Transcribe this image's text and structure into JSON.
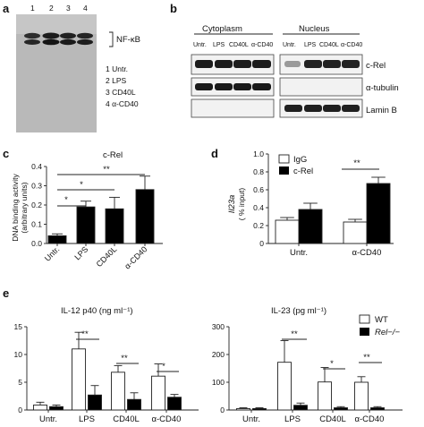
{
  "panels": {
    "a": {
      "label": "a",
      "lanes": [
        "1",
        "2",
        "3",
        "4"
      ],
      "band_label": "NF-κB",
      "legend": [
        "1 Untr.",
        "2 LPS",
        "3 CD40L",
        "4 α-CD40"
      ]
    },
    "b": {
      "label": "b",
      "compartments": [
        "Cytoplasm",
        "Nucleus"
      ],
      "lanes": [
        "Untr.",
        "LPS",
        "CD40L",
        "α-CD40"
      ],
      "rows": [
        "c-Rel",
        "α-tubulin",
        "Lamin B"
      ]
    },
    "c": {
      "label": "c",
      "title": "c-Rel",
      "ylabel_lines": [
        "DNA binding activity",
        "(arbitrary units)"
      ],
      "sig": [
        "*",
        "*",
        "**"
      ]
    },
    "d": {
      "label": "d",
      "ylabel_gene": "Il23a",
      "ylabel_unit": "( % input)",
      "legend": [
        "IgG",
        "c-Rel"
      ],
      "sig": [
        "**"
      ]
    },
    "e": {
      "label": "e",
      "left_title": "IL-12 p40 (ng ml⁻¹)",
      "right_title": "IL-23 (pg ml⁻¹)",
      "legend": [
        "WT",
        "Rel−/−"
      ],
      "left_sig": [
        "**",
        "**",
        "*"
      ],
      "right_sig": [
        "**",
        "*",
        "**"
      ]
    }
  },
  "chart_data": [
    {
      "id": "c",
      "type": "bar",
      "title": "c-Rel",
      "ylabel": "DNA binding activity (arbitrary units)",
      "categories": [
        "Untr.",
        "LPS",
        "CD40L",
        "α-CD40"
      ],
      "values": [
        0.04,
        0.19,
        0.18,
        0.28
      ],
      "errors": [
        0.01,
        0.03,
        0.06,
        0.07
      ],
      "ylim": [
        0,
        0.4
      ],
      "yticks": [
        "0.0",
        "0.1",
        "0.2",
        "0.3",
        "0.4"
      ],
      "color": "#000000"
    },
    {
      "id": "d",
      "type": "bar",
      "ylabel": "Il23a ( % input)",
      "categories": [
        "Untr.",
        "α-CD40"
      ],
      "series": [
        {
          "name": "IgG",
          "values": [
            0.26,
            0.24
          ],
          "errors": [
            0.03,
            0.03
          ],
          "color": "#ffffff"
        },
        {
          "name": "c-Rel",
          "values": [
            0.38,
            0.67
          ],
          "errors": [
            0.07,
            0.07
          ],
          "color": "#000000"
        }
      ],
      "ylim": [
        0,
        1.0
      ],
      "yticks": [
        "0",
        "0.2",
        "0.4",
        "0.6",
        "0.8",
        "1.0"
      ]
    },
    {
      "id": "e1",
      "type": "bar",
      "title": "IL-12 p40 (ng ml⁻¹)",
      "categories": [
        "Untr.",
        "LPS",
        "CD40L",
        "α-CD40"
      ],
      "series": [
        {
          "name": "WT",
          "values": [
            0.9,
            11.0,
            6.8,
            6.1
          ],
          "errors": [
            0.5,
            3.0,
            1.2,
            2.2
          ],
          "color": "#ffffff"
        },
        {
          "name": "Rel−/−",
          "values": [
            0.6,
            2.7,
            1.9,
            2.3
          ],
          "errors": [
            0.3,
            1.7,
            1.2,
            0.5
          ],
          "color": "#000000"
        }
      ],
      "ylim": [
        0,
        15
      ],
      "yticks": [
        "0",
        "5",
        "10",
        "15"
      ]
    },
    {
      "id": "e2",
      "type": "bar",
      "title": "IL-23 (pg ml⁻¹)",
      "categories": [
        "Untr.",
        "LPS",
        "CD40L",
        "α-CD40"
      ],
      "series": [
        {
          "name": "WT",
          "values": [
            5,
            172,
            101,
            100
          ],
          "errors": [
            3,
            78,
            52,
            20
          ],
          "color": "#ffffff"
        },
        {
          "name": "Rel−/−",
          "values": [
            5,
            17,
            8,
            8
          ],
          "errors": [
            3,
            8,
            4,
            4
          ],
          "color": "#000000"
        }
      ],
      "ylim": [
        0,
        300
      ],
      "yticks": [
        "0",
        "100",
        "200",
        "300"
      ]
    }
  ]
}
